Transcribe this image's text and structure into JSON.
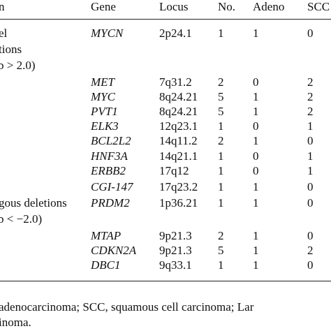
{
  "table": {
    "header": [
      "n",
      "Gene",
      "Locus",
      "No.",
      "Adeno",
      "SCC"
    ],
    "rows": [
      {
        "label": [
          "el",
          "tions",
          "ɔ > 2.0)"
        ],
        "cells": [
          "MYCN",
          "2p24.1",
          "1",
          "1",
          "0"
        ]
      },
      {
        "label": [],
        "cells": [
          "MET",
          "7q31.2",
          "2",
          "0",
          "2"
        ]
      },
      {
        "label": [],
        "cells": [
          "MYC",
          "8q24.21",
          "5",
          "1",
          "2"
        ]
      },
      {
        "label": [],
        "cells": [
          "PVT1",
          "8q24.21",
          "5",
          "1",
          "2"
        ]
      },
      {
        "label": [],
        "cells": [
          "ELK3",
          "12q23.1",
          "1",
          "0",
          "1"
        ]
      },
      {
        "label": [],
        "cells": [
          "BCL2L2",
          "14q11.2",
          "2",
          "1",
          "0"
        ]
      },
      {
        "label": [],
        "cells": [
          "HNF3A",
          "14q21.1",
          "1",
          "0",
          "1"
        ]
      },
      {
        "label": [],
        "cells": [
          "ERBB2",
          "17q12",
          "1",
          "0",
          "1"
        ]
      },
      {
        "label": [],
        "cells": [
          "CGI-147",
          "17q23.2",
          "1",
          "1",
          "0"
        ]
      },
      {
        "label": [
          "gous deletions",
          "ɔ < −2.0)"
        ],
        "cells": [
          "PRDM2",
          "1p36.21",
          "1",
          "1",
          "0"
        ]
      },
      {
        "label": [],
        "cells": [
          "MTAP",
          "9p21.3",
          "2",
          "1",
          "0"
        ]
      },
      {
        "label": [],
        "cells": [
          "CDKN2A",
          "9p21.3",
          "5",
          "1",
          "2"
        ]
      },
      {
        "label": [],
        "cells": [
          "DBC1",
          "9q33.1",
          "1",
          "1",
          "0"
        ]
      }
    ]
  },
  "footnote": [
    "adenocarcinoma; SCC, squamous cell carcinoma; Lar",
    "inoma."
  ]
}
